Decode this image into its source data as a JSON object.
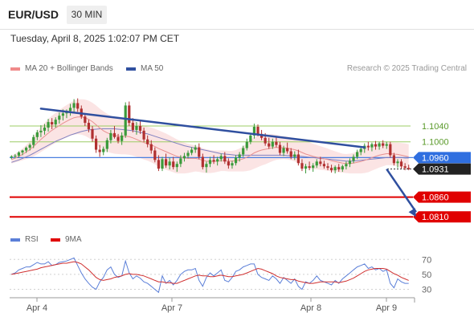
{
  "header": {
    "symbol": "EUR/USD",
    "timeframe": "30 MIN"
  },
  "timestamp": "Tuesday, April 8, 2025 1:02:07 PM CET",
  "legend": {
    "bb_label": "MA 20 + Bollinger Bands",
    "ma50_label": "MA 50",
    "rsi_label": "RSI",
    "rsi_ma_label": "9MA"
  },
  "credit": "Research © 2025 Trading Central",
  "colors": {
    "up": "#3a9a3a",
    "down": "#b03030",
    "band_fill": "#fadbdb",
    "ma20": "#e89090",
    "ma50": "#8080c0",
    "trendline": "#2f4f9f",
    "support": "#e00000",
    "resistance": "#9ccc65",
    "pivot": "#4a7fe0",
    "rsi": "#5b7fd8",
    "rsi_ma": "#d03030"
  },
  "chart_data": {
    "type": "candlestick",
    "x_ticks": [
      "Apr 4",
      "Apr 7",
      "Apr 8",
      "Apr 9"
    ],
    "ylim": [
      1.0786,
      1.1164
    ],
    "candles": [
      [
        1.0962,
        1.0966,
        1.0956,
        1.0963
      ],
      [
        1.0963,
        1.0969,
        1.0958,
        1.0965
      ],
      [
        1.0965,
        1.0976,
        1.096,
        1.0973
      ],
      [
        1.0973,
        1.098,
        1.0966,
        1.0978
      ],
      [
        1.0978,
        1.0988,
        1.0972,
        1.0985
      ],
      [
        1.0985,
        1.0996,
        1.0978,
        1.0992
      ],
      [
        1.0992,
        1.1018,
        1.0984,
        1.1012
      ],
      [
        1.1012,
        1.103,
        1.1004,
        1.1024
      ],
      [
        1.1024,
        1.1042,
        1.1012,
        1.1028
      ],
      [
        1.1028,
        1.1045,
        1.1018,
        1.1036
      ],
      [
        1.1036,
        1.1058,
        1.1026,
        1.105
      ],
      [
        1.105,
        1.106,
        1.1032,
        1.1044
      ],
      [
        1.1044,
        1.1062,
        1.1036,
        1.1056
      ],
      [
        1.1056,
        1.1074,
        1.1046,
        1.1066
      ],
      [
        1.1066,
        1.1082,
        1.1054,
        1.1072
      ],
      [
        1.1072,
        1.1082,
        1.106,
        1.1078
      ],
      [
        1.1078,
        1.1096,
        1.1066,
        1.1086
      ],
      [
        1.1086,
        1.1108,
        1.1072,
        1.1098
      ],
      [
        1.1098,
        1.111,
        1.1076,
        1.1084
      ],
      [
        1.1084,
        1.1092,
        1.1058,
        1.1064
      ],
      [
        1.1064,
        1.1072,
        1.104,
        1.1048
      ],
      [
        1.1048,
        1.1056,
        1.1024,
        1.1032
      ],
      [
        1.1032,
        1.104,
        1.1,
        1.1008
      ],
      [
        1.1008,
        1.1016,
        1.0972,
        1.098
      ],
      [
        1.098,
        1.0992,
        1.0962,
        1.0974
      ],
      [
        1.0974,
        1.0988,
        1.0966,
        1.0982
      ],
      [
        1.0982,
        1.101,
        1.0974,
        1.1004
      ],
      [
        1.1004,
        1.103,
        1.0996,
        1.1022
      ],
      [
        1.1022,
        1.104,
        1.1008,
        1.1012
      ],
      [
        1.1012,
        1.102,
        1.0996,
        1.1002
      ],
      [
        1.1002,
        1.1024,
        1.0992,
        1.1016
      ],
      [
        1.1016,
        1.11,
        1.101,
        1.1092
      ],
      [
        1.1092,
        1.1102,
        1.104,
        1.1048
      ],
      [
        1.1048,
        1.106,
        1.1024,
        1.103
      ],
      [
        1.103,
        1.105,
        1.1018,
        1.104
      ],
      [
        1.104,
        1.1056,
        1.102,
        1.1028
      ],
      [
        1.1028,
        1.1036,
        1.1,
        1.1006
      ],
      [
        1.1006,
        1.1016,
        1.0986,
        1.0994
      ],
      [
        1.0994,
        1.1004,
        1.097,
        1.0978
      ],
      [
        1.0978,
        1.0986,
        1.0948,
        1.0954
      ],
      [
        1.0954,
        1.0966,
        1.0926,
        1.0932
      ],
      [
        1.0932,
        1.0962,
        1.0926,
        1.0956
      ],
      [
        1.0956,
        1.097,
        1.0934,
        1.094
      ],
      [
        1.094,
        1.096,
        1.093,
        1.095
      ],
      [
        1.095,
        1.0962,
        1.093,
        1.0936
      ],
      [
        1.0936,
        1.095,
        1.0924,
        1.0944
      ],
      [
        1.0944,
        1.0966,
        1.0936,
        1.0958
      ],
      [
        1.0958,
        1.0972,
        1.095,
        1.0964
      ],
      [
        1.0964,
        1.0978,
        1.0958,
        1.0972
      ],
      [
        1.0972,
        1.0986,
        1.0966,
        1.098
      ],
      [
        1.098,
        1.0992,
        1.0972,
        1.0986
      ],
      [
        1.0986,
        1.0996,
        1.0956,
        1.0962
      ],
      [
        1.0962,
        1.097,
        1.093,
        1.0936
      ],
      [
        1.0936,
        1.095,
        1.0922,
        1.0944
      ],
      [
        1.0944,
        1.0962,
        1.0936,
        1.0954
      ],
      [
        1.0954,
        1.0966,
        1.0944,
        1.095
      ],
      [
        1.095,
        1.0962,
        1.094,
        1.0956
      ],
      [
        1.0956,
        1.097,
        1.095,
        1.0964
      ],
      [
        1.0964,
        1.0974,
        1.0944,
        1.095
      ],
      [
        1.095,
        1.0958,
        1.0932,
        1.094
      ],
      [
        1.094,
        1.0952,
        1.0932,
        1.0946
      ],
      [
        1.0946,
        1.0966,
        1.094,
        1.096
      ],
      [
        1.096,
        1.0974,
        1.095,
        1.0968
      ],
      [
        1.0968,
        1.099,
        1.0962,
        1.0984
      ],
      [
        1.0984,
        1.1008,
        1.0978,
        1.1
      ],
      [
        1.1,
        1.1022,
        1.0994,
        1.1016
      ],
      [
        1.1016,
        1.1046,
        1.1008,
        1.1038
      ],
      [
        1.1038,
        1.1044,
        1.1014,
        1.102
      ],
      [
        1.102,
        1.103,
        1.1004,
        1.101
      ],
      [
        1.101,
        1.1022,
        1.099,
        1.0996
      ],
      [
        1.0996,
        1.101,
        1.0982,
        1.0988
      ],
      [
        1.0988,
        1.1008,
        1.0982,
        1.1
      ],
      [
        1.1,
        1.1014,
        1.0986,
        1.0992
      ],
      [
        1.0992,
        1.1,
        1.0966,
        1.0972
      ],
      [
        1.0972,
        1.099,
        1.0964,
        1.0984
      ],
      [
        1.0984,
        1.0998,
        1.097,
        1.0976
      ],
      [
        1.0976,
        1.0984,
        1.0956,
        1.0962
      ],
      [
        1.0962,
        1.0976,
        1.0954,
        1.0968
      ],
      [
        1.0968,
        1.098,
        1.094,
        1.0946
      ],
      [
        1.0946,
        1.0956,
        1.0926,
        1.0932
      ],
      [
        1.0932,
        1.0944,
        1.092,
        1.0938
      ],
      [
        1.0938,
        1.095,
        1.0928,
        1.0934
      ],
      [
        1.0934,
        1.0946,
        1.0924,
        1.094
      ],
      [
        1.094,
        1.0956,
        1.0934,
        1.095
      ],
      [
        1.095,
        1.0962,
        1.0938,
        1.0944
      ],
      [
        1.0944,
        1.0952,
        1.0932,
        1.0938
      ],
      [
        1.0938,
        1.0946,
        1.0928,
        1.0934
      ],
      [
        1.0934,
        1.0942,
        1.0922,
        1.0928
      ],
      [
        1.0928,
        1.094,
        1.092,
        1.0936
      ],
      [
        1.0936,
        1.0944,
        1.0924,
        1.093
      ],
      [
        1.093,
        1.0942,
        1.0924,
        1.0938
      ],
      [
        1.0938,
        1.095,
        1.093,
        1.0944
      ],
      [
        1.0944,
        1.0958,
        1.0936,
        1.0952
      ],
      [
        1.0952,
        1.0968,
        1.0946,
        1.0962
      ],
      [
        1.0962,
        1.098,
        1.0956,
        1.0974
      ],
      [
        1.0974,
        1.0988,
        1.0966,
        1.0982
      ],
      [
        1.0982,
        1.0996,
        1.0972,
        1.099
      ],
      [
        1.099,
        1.1,
        1.0978,
        1.0986
      ],
      [
        1.0986,
        1.0998,
        1.0976,
        1.0994
      ],
      [
        1.0994,
        1.1002,
        1.098,
        1.0988
      ],
      [
        1.0988,
        1.1,
        1.098,
        1.0996
      ],
      [
        1.0996,
        1.1004,
        1.0984,
        1.099
      ],
      [
        1.099,
        1.1,
        1.0982,
        1.0994
      ],
      [
        1.0994,
        1.1,
        1.096,
        1.0966
      ],
      [
        1.0966,
        1.0972,
        1.094,
        1.0946
      ],
      [
        1.0946,
        1.0956,
        1.0934,
        1.095
      ],
      [
        1.095,
        1.0956,
        1.0932,
        1.0938
      ],
      [
        1.0938,
        1.0946,
        1.0928,
        1.0934
      ],
      [
        1.0934,
        1.0942,
        1.0928,
        1.0931
      ]
    ],
    "ma20": [
      1.0955,
      1.0959,
      1.0963,
      1.0968,
      1.0974,
      1.098,
      1.0988,
      1.0997,
      1.1006,
      1.1014,
      1.1022,
      1.1029,
      1.1035,
      1.1041,
      1.1047,
      1.1052,
      1.1057,
      1.1061,
      1.1063,
      1.1063,
      1.1061,
      1.1057,
      1.1051,
      1.1043,
      1.1035,
      1.1028,
      1.1023,
      1.1019,
      1.1016,
      1.1014,
      1.1013,
      1.1014,
      1.1013,
      1.101,
      1.1006,
      1.1002,
      1.0998,
      1.0995,
      1.0992,
      1.0988,
      1.0983,
      1.0979,
      1.0975,
      1.0971,
      1.0967,
      1.0963,
      1.0961,
      1.0959,
      1.0958,
      1.0958,
      1.0958,
      1.0956,
      1.0953,
      1.0951,
      1.095,
      1.095,
      1.0951,
      1.0952,
      1.0952,
      1.0951,
      1.0951,
      1.0952,
      1.0954,
      1.0957,
      1.0961,
      1.0966,
      1.0972,
      1.0976,
      1.0979,
      1.0981,
      1.0983,
      1.0985,
      1.0986,
      1.0985,
      1.0985,
      1.0984,
      1.0982,
      1.098,
      1.0977,
      1.0973,
      1.0969,
      1.0966,
      1.0963,
      1.0961,
      1.0959,
      1.0957,
      1.0955,
      1.0952,
      1.095,
      1.0948,
      1.0946,
      1.0945,
      1.0945,
      1.0946,
      1.0948,
      1.095,
      1.0953,
      1.0956,
      1.096,
      1.0963,
      1.0966,
      1.0968,
      1.097,
      1.097,
      1.0969,
      1.0968,
      1.0966,
      1.0964,
      1.0962
    ],
    "bb_width": [
      0.001,
      0.0011,
      0.0013,
      0.0015,
      0.0018,
      0.0021,
      0.0025,
      0.0029,
      0.0032,
      0.0034,
      0.0036,
      0.0037,
      0.0038,
      0.0039,
      0.004,
      0.0041,
      0.0042,
      0.0043,
      0.0044,
      0.0045,
      0.0046,
      0.0047,
      0.0048,
      0.0049,
      0.0049,
      0.0049,
      0.0048,
      0.0047,
      0.0046,
      0.0045,
      0.0045,
      0.0046,
      0.0046,
      0.0045,
      0.0044,
      0.0043,
      0.0043,
      0.0043,
      0.0044,
      0.0045,
      0.0046,
      0.0046,
      0.0046,
      0.0045,
      0.0044,
      0.0043,
      0.0041,
      0.0039,
      0.0037,
      0.0035,
      0.0033,
      0.0032,
      0.0031,
      0.003,
      0.0029,
      0.0028,
      0.0027,
      0.0026,
      0.0026,
      0.0026,
      0.0026,
      0.0027,
      0.0029,
      0.0032,
      0.0035,
      0.0038,
      0.004,
      0.004,
      0.0039,
      0.0038,
      0.0036,
      0.0034,
      0.0032,
      0.003,
      0.0029,
      0.0029,
      0.0029,
      0.003,
      0.0031,
      0.0032,
      0.0033,
      0.0033,
      0.0032,
      0.0031,
      0.003,
      0.0029,
      0.0028,
      0.0027,
      0.0026,
      0.0025,
      0.0024,
      0.0024,
      0.0025,
      0.0026,
      0.0028,
      0.003,
      0.0032,
      0.0033,
      0.0033,
      0.0032,
      0.0031,
      0.003,
      0.0029,
      0.0029,
      0.0029,
      0.003,
      0.0031,
      0.0032,
      0.0032
    ],
    "ma50": [
      1.0948,
      1.0951,
      1.0954,
      1.0958,
      1.0962,
      1.0966,
      1.0971,
      1.0976,
      1.0981,
      1.0986,
      1.0991,
      1.0996,
      1.1001,
      1.1005,
      1.1009,
      1.1013,
      1.1017,
      1.102,
      1.1023,
      1.1026,
      1.1028,
      1.103,
      1.1031,
      1.1032,
      1.1033,
      1.1033,
      1.1033,
      1.1033,
      1.1033,
      1.1032,
      1.1031,
      1.103,
      1.1029,
      1.1028,
      1.1026,
      1.1024,
      1.1022,
      1.102,
      1.1017,
      1.1014,
      1.1011,
      1.1008,
      1.1005,
      1.1002,
      1.0999,
      1.0996,
      1.0993,
      1.099,
      1.0988,
      1.0986,
      1.0984,
      1.0982,
      1.098,
      1.0978,
      1.0976,
      1.0974,
      1.0972,
      1.097,
      1.0969,
      1.0968,
      1.0967,
      1.0966,
      1.0966,
      1.0966,
      1.0966,
      1.0966,
      1.0966,
      1.0966,
      1.0966,
      1.0966,
      1.0966,
      1.0966,
      1.0966,
      1.0966,
      1.0966,
      1.0965,
      1.0965,
      1.0964,
      1.0964,
      1.0963,
      1.0962,
      1.0961,
      1.096,
      1.0959,
      1.0958,
      1.0957,
      1.0956,
      1.0955,
      1.0954,
      1.0953,
      1.0952,
      1.0951,
      1.0951,
      1.0951,
      1.0952,
      1.0953,
      1.0954,
      1.0955,
      1.0956,
      1.0957,
      1.0958,
      1.0959,
      1.096,
      1.096,
      1.096,
      1.096,
      1.096,
      1.0959,
      1.0959
    ],
    "trendline": [
      [
        8,
        1.1084
      ],
      [
        96,
        1.0986
      ]
    ],
    "horizontal_levels": [
      {
        "price": 1.104,
        "label": "1.1040",
        "kind": "resistance"
      },
      {
        "price": 1.1,
        "label": "1.1000",
        "kind": "resistance"
      },
      {
        "price": 1.096,
        "label": "1.0960",
        "kind": "pivot"
      },
      {
        "price": 1.0931,
        "label": "1.0931",
        "kind": "last"
      },
      {
        "price": 1.086,
        "label": "1.0860",
        "kind": "support"
      },
      {
        "price": 1.081,
        "label": "1.0810",
        "kind": "support"
      }
    ],
    "projection": [
      [
        102,
        1.0931
      ],
      [
        110,
        1.081
      ]
    ],
    "rsi": {
      "ylim": [
        22,
        80
      ],
      "ticks": [
        70,
        50,
        30
      ],
      "values": [
        50,
        52,
        56,
        58,
        60,
        60,
        63,
        66,
        64,
        64,
        67,
        62,
        63,
        66,
        67,
        68,
        70,
        72,
        62,
        52,
        44,
        38,
        33,
        30,
        40,
        46,
        56,
        60,
        50,
        46,
        48,
        68,
        52,
        44,
        48,
        45,
        40,
        38,
        34,
        30,
        26,
        48,
        38,
        42,
        36,
        42,
        50,
        54,
        56,
        56,
        58,
        42,
        34,
        46,
        52,
        48,
        52,
        56,
        42,
        40,
        46,
        54,
        56,
        60,
        62,
        64,
        64,
        50,
        46,
        44,
        42,
        48,
        44,
        38,
        46,
        42,
        38,
        44,
        34,
        30,
        40,
        38,
        42,
        48,
        42,
        40,
        38,
        36,
        42,
        38,
        44,
        48,
        52,
        56,
        60,
        62,
        64,
        58,
        60,
        56,
        58,
        54,
        56,
        38,
        32,
        44,
        40,
        38,
        38
      ],
      "ma9": [
        50,
        51,
        52,
        53,
        54,
        55,
        56,
        57,
        59,
        60,
        61,
        62,
        63,
        64,
        65,
        65,
        66,
        67,
        66,
        64,
        60,
        56,
        51,
        46,
        43,
        42,
        43,
        44,
        46,
        47,
        48,
        50,
        51,
        50,
        50,
        49,
        48,
        46,
        44,
        42,
        40,
        40,
        39,
        39,
        38,
        38,
        40,
        42,
        44,
        46,
        48,
        49,
        48,
        48,
        47,
        47,
        48,
        49,
        48,
        47,
        47,
        48,
        49,
        50,
        52,
        54,
        56,
        58,
        57,
        55,
        53,
        51,
        48,
        46,
        45,
        44,
        43,
        43,
        41,
        40,
        39,
        38,
        38,
        39,
        40,
        40,
        40,
        40,
        40,
        39,
        40,
        41,
        43,
        45,
        48,
        51,
        54,
        56,
        57,
        58,
        58,
        58,
        57,
        54,
        51,
        49,
        46,
        44,
        42
      ]
    }
  }
}
